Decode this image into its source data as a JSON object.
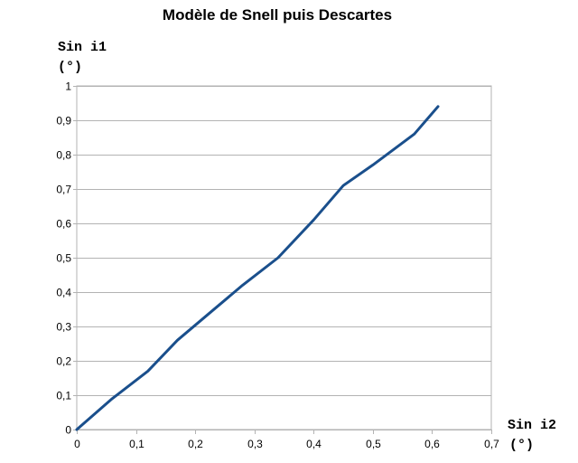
{
  "chart_data": {
    "type": "line",
    "title": "Modèle de Snell puis Descartes",
    "ylabel_line1": "Sin i1",
    "ylabel_line2": "(°)",
    "xlabel_line1": "Sin i2",
    "xlabel_line2": "(°)",
    "xlim": [
      0,
      0.7
    ],
    "ylim": [
      0,
      1
    ],
    "x_ticks": [
      "0",
      "0,1",
      "0,2",
      "0,3",
      "0,4",
      "0,5",
      "0,6",
      "0,7"
    ],
    "y_ticks": [
      "0",
      "0,1",
      "0,2",
      "0,3",
      "0,4",
      "0,5",
      "0,6",
      "0,7",
      "0,8",
      "0,9",
      "1"
    ],
    "grid": "horizontal",
    "series": [
      {
        "color": "#1a4f8c",
        "x": [
          0,
          0.06,
          0.12,
          0.17,
          0.225,
          0.28,
          0.34,
          0.4,
          0.45,
          0.5,
          0.57,
          0.61
        ],
        "y": [
          0,
          0.09,
          0.17,
          0.26,
          0.34,
          0.42,
          0.5,
          0.61,
          0.71,
          0.77,
          0.86,
          0.94
        ]
      }
    ]
  }
}
